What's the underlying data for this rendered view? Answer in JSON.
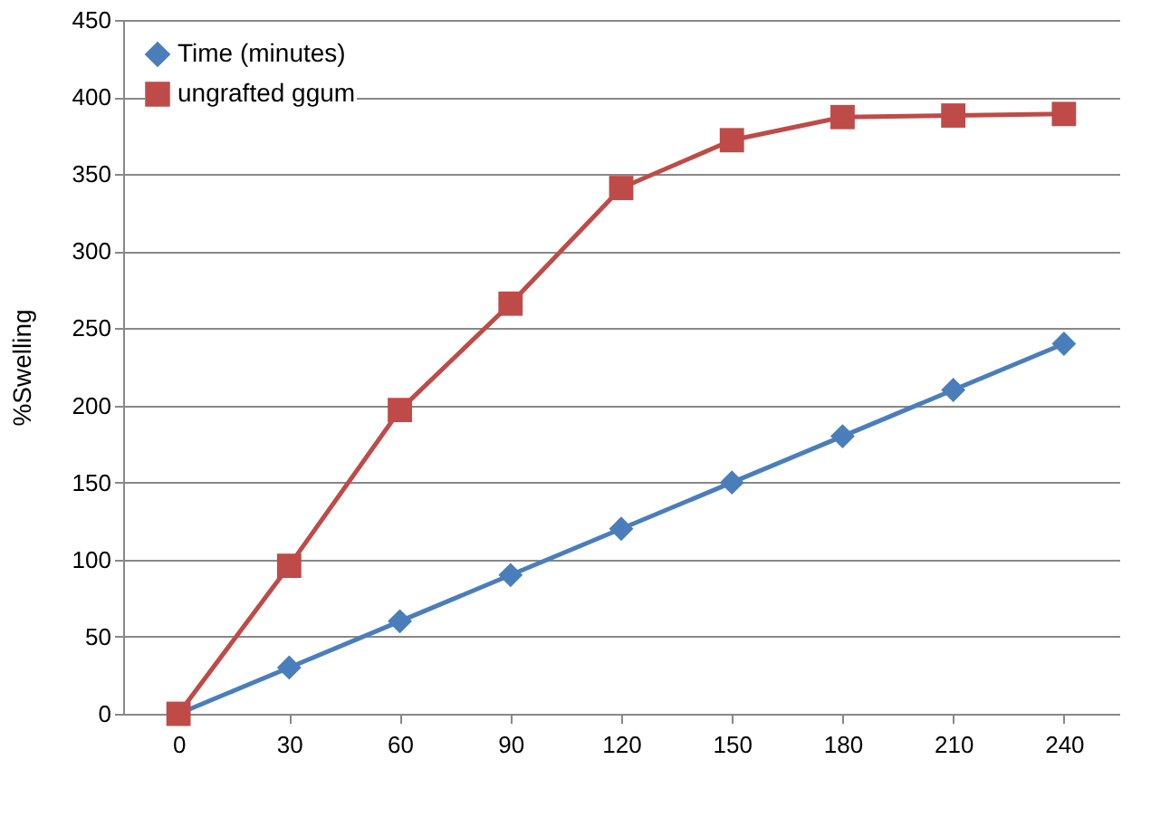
{
  "chart_data": {
    "type": "line",
    "ylabel": "%Swelling",
    "categories": [
      "0",
      "30",
      "60",
      "90",
      "120",
      "150",
      "180",
      "210",
      "240"
    ],
    "series": [
      {
        "name": "Time (minutes)",
        "color": "#4a7ebb",
        "marker": "diamond",
        "values": [
          0,
          30,
          60,
          90,
          120,
          150,
          180,
          210,
          240
        ]
      },
      {
        "name": "ungrafted ggum",
        "color": "#be4b48",
        "marker": "square",
        "values": [
          0,
          96,
          197,
          266,
          341,
          372,
          387,
          388,
          389
        ]
      }
    ],
    "ylim": [
      0,
      450
    ],
    "yticks": [
      0,
      50,
      100,
      150,
      200,
      250,
      300,
      350,
      400,
      450
    ],
    "grid": "y",
    "legend": "top left"
  }
}
